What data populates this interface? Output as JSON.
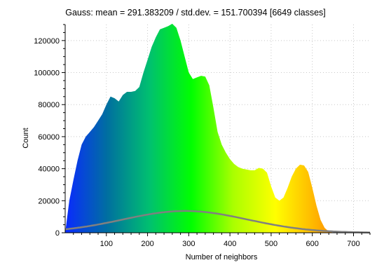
{
  "chart_data": {
    "type": "area",
    "title": "Gauss: mean = 291.383209 / std.dev. = 151.700394 [6649 classes]",
    "xlabel": "Number of neighbors",
    "ylabel": "Count",
    "xlim": [
      0,
      740
    ],
    "ylim": [
      0,
      130000
    ],
    "x_ticks": [
      100,
      200,
      300,
      400,
      500,
      600,
      700
    ],
    "y_ticks": [
      0,
      20000,
      40000,
      60000,
      80000,
      100000,
      120000
    ],
    "grid": true,
    "histogram": {
      "name": "",
      "x": [
        0,
        10,
        20,
        30,
        40,
        50,
        60,
        70,
        80,
        90,
        100,
        110,
        120,
        130,
        140,
        150,
        160,
        170,
        180,
        190,
        200,
        210,
        220,
        230,
        240,
        250,
        260,
        270,
        280,
        290,
        300,
        310,
        320,
        330,
        340,
        350,
        360,
        370,
        380,
        390,
        400,
        410,
        420,
        430,
        440,
        450,
        460,
        470,
        480,
        490,
        500,
        510,
        520,
        530,
        540,
        550,
        560,
        570,
        580,
        590,
        600,
        610,
        620,
        630,
        640,
        650,
        660,
        670,
        680,
        690,
        700,
        710,
        720,
        730,
        740
      ],
      "y": [
        0,
        20000,
        33000,
        45000,
        55000,
        60000,
        63000,
        66000,
        70000,
        74000,
        80000,
        85000,
        84000,
        82000,
        86000,
        88000,
        88000,
        88500,
        91000,
        100000,
        108000,
        116000,
        122000,
        127000,
        128000,
        129000,
        130500,
        128000,
        120000,
        110000,
        100000,
        96000,
        97000,
        98000,
        97500,
        92000,
        78000,
        63000,
        55000,
        50000,
        46000,
        43000,
        41000,
        40000,
        39500,
        39000,
        39000,
        40500,
        40000,
        37500,
        29000,
        22000,
        20000,
        22000,
        28000,
        35000,
        40000,
        42500,
        42000,
        38000,
        28000,
        17000,
        8000,
        3000,
        800,
        200,
        0,
        0,
        0,
        0,
        0,
        0,
        0,
        0,
        0
      ]
    },
    "gauss_curve": {
      "name": "",
      "mean": 291.383209,
      "std_dev": 151.700394,
      "peak": 13600,
      "color": "#808080"
    },
    "gradient_colors": [
      "#0a2aff",
      "#006fa0",
      "#00c070",
      "#00ff00",
      "#aaff00",
      "#ffff00",
      "#ffb000",
      "#ff5000"
    ]
  }
}
